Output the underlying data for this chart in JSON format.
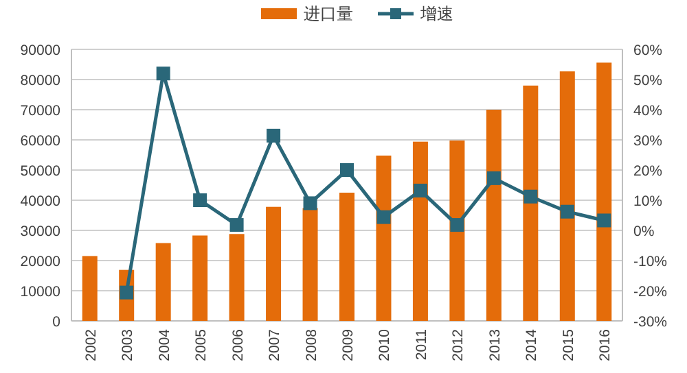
{
  "chart_data": {
    "type": "bar",
    "categories": [
      "2002",
      "2003",
      "2004",
      "2005",
      "2006",
      "2007",
      "2008",
      "2009",
      "2010",
      "2011",
      "2012",
      "2013",
      "2014",
      "2015",
      "2016"
    ],
    "series": [
      {
        "name": "进口量",
        "color": "#e46c0a",
        "values": [
          21500,
          16900,
          25800,
          28300,
          28800,
          37800,
          37400,
          42500,
          54800,
          59400,
          59800,
          70000,
          78000,
          82700,
          85600
        ]
      },
      {
        "name": "增速",
        "type": "line",
        "axis": "y2",
        "color": "#2a6779",
        "marker": "square",
        "values": [
          null,
          -20.6,
          52,
          10,
          1.8,
          31.4,
          9,
          20,
          4.4,
          13.2,
          1.8,
          17.3,
          11.2,
          6.2,
          3.3
        ]
      }
    ],
    "ylim": [
      0,
      90000
    ],
    "yticks": [
      0,
      10000,
      20000,
      30000,
      40000,
      50000,
      60000,
      70000,
      80000,
      90000
    ],
    "y2lim": [
      -30,
      60
    ],
    "y2ticks": [
      {
        "value": -30,
        "label": "-30%"
      },
      {
        "value": -20,
        "label": "-20%"
      },
      {
        "value": -10,
        "label": "-10%"
      },
      {
        "value": 0,
        "label": "0%"
      },
      {
        "value": 10,
        "label": "10%"
      },
      {
        "value": 20,
        "label": "20%"
      },
      {
        "value": 30,
        "label": "30%"
      },
      {
        "value": 40,
        "label": "40%"
      },
      {
        "value": 50,
        "label": "50%"
      },
      {
        "value": 60,
        "label": "60%"
      }
    ],
    "grid": "y",
    "legend": "top"
  }
}
